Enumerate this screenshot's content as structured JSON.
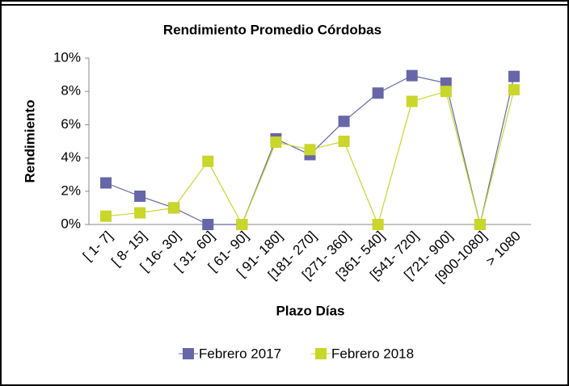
{
  "chart_data": {
    "type": "line",
    "title": "Rendimiento Promedio Córdobas",
    "x_label": "Plazo Días",
    "y_label": "Rendimiento",
    "categories": [
      "[ 1-  7]",
      "[ 8- 15]",
      "[ 16- 30]",
      "[ 31- 60]",
      "[ 61- 90]",
      "[ 91- 180]",
      "[181- 270]",
      "[271- 360]",
      "[361- 540]",
      "[541- 720]",
      "[721- 900]",
      "[900-1080]",
      "> 1080"
    ],
    "series": [
      {
        "name": "Febrero 2017",
        "color": "#6666a8",
        "values": [
          2.5,
          1.7,
          1.0,
          0,
          0,
          5.15,
          4.2,
          6.2,
          7.9,
          8.95,
          8.5,
          0,
          8.9
        ]
      },
      {
        "name": "Febrero 2018",
        "color": "#c9d62a",
        "values": [
          0.5,
          0.7,
          1.0,
          3.8,
          0,
          4.95,
          4.5,
          5.0,
          0,
          7.4,
          8.0,
          0,
          8.1
        ]
      }
    ],
    "ylim": [
      0,
      10
    ],
    "yticks": [
      {
        "value": 0,
        "label": "0%"
      },
      {
        "value": 2,
        "label": "2%"
      },
      {
        "value": 4,
        "label": "4%"
      },
      {
        "value": 6,
        "label": "6%"
      },
      {
        "value": 8,
        "label": "8%"
      },
      {
        "value": 10,
        "label": "10%"
      }
    ],
    "grid": false,
    "legend": "bottom"
  }
}
